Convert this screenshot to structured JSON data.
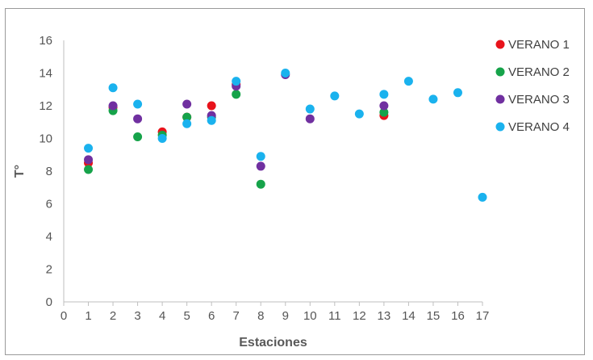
{
  "chart_data": {
    "type": "scatter",
    "xlabel": "Estaciones",
    "ylabel": "T°",
    "xlim": [
      0,
      17
    ],
    "ylim": [
      0,
      16
    ],
    "x_ticks": [
      0,
      1,
      2,
      3,
      4,
      5,
      6,
      7,
      8,
      9,
      10,
      11,
      12,
      13,
      14,
      15,
      16,
      17
    ],
    "y_ticks": [
      0,
      2,
      4,
      6,
      8,
      10,
      12,
      14,
      16
    ],
    "grid": false,
    "legend_position": "right",
    "series": [
      {
        "name": "VERANO 1",
        "color": "#e8131b",
        "points": [
          [
            1,
            8.5
          ],
          [
            2,
            11.9
          ],
          [
            4,
            10.4
          ],
          [
            5,
            11.3
          ],
          [
            6,
            12.0
          ],
          [
            7,
            13.3
          ],
          [
            13,
            11.4
          ]
        ]
      },
      {
        "name": "VERANO 2",
        "color": "#16a34a",
        "points": [
          [
            1,
            8.1
          ],
          [
            2,
            11.7
          ],
          [
            3,
            10.1
          ],
          [
            4,
            10.2
          ],
          [
            5,
            11.3
          ],
          [
            6,
            11.3
          ],
          [
            7,
            12.7
          ],
          [
            8,
            7.2
          ],
          [
            13,
            11.6
          ]
        ]
      },
      {
        "name": "VERANO 3",
        "color": "#7030a0",
        "points": [
          [
            1,
            8.7
          ],
          [
            2,
            12.0
          ],
          [
            3,
            11.2
          ],
          [
            5,
            12.1
          ],
          [
            6,
            11.4
          ],
          [
            7,
            13.2
          ],
          [
            8,
            8.3
          ],
          [
            9,
            13.9
          ],
          [
            10,
            11.2
          ],
          [
            13,
            12.0
          ]
        ]
      },
      {
        "name": "VERANO 4",
        "color": "#1ab2ee",
        "points": [
          [
            1,
            9.4
          ],
          [
            2,
            13.1
          ],
          [
            3,
            12.1
          ],
          [
            4,
            10.0
          ],
          [
            5,
            10.9
          ],
          [
            6,
            11.1
          ],
          [
            7,
            13.5
          ],
          [
            8,
            8.9
          ],
          [
            9,
            14.0
          ],
          [
            10,
            11.8
          ],
          [
            11,
            12.6
          ],
          [
            12,
            11.5
          ],
          [
            13,
            12.7
          ],
          [
            14,
            13.5
          ],
          [
            15,
            12.4
          ],
          [
            16,
            12.8
          ],
          [
            17,
            6.4
          ]
        ]
      }
    ]
  }
}
